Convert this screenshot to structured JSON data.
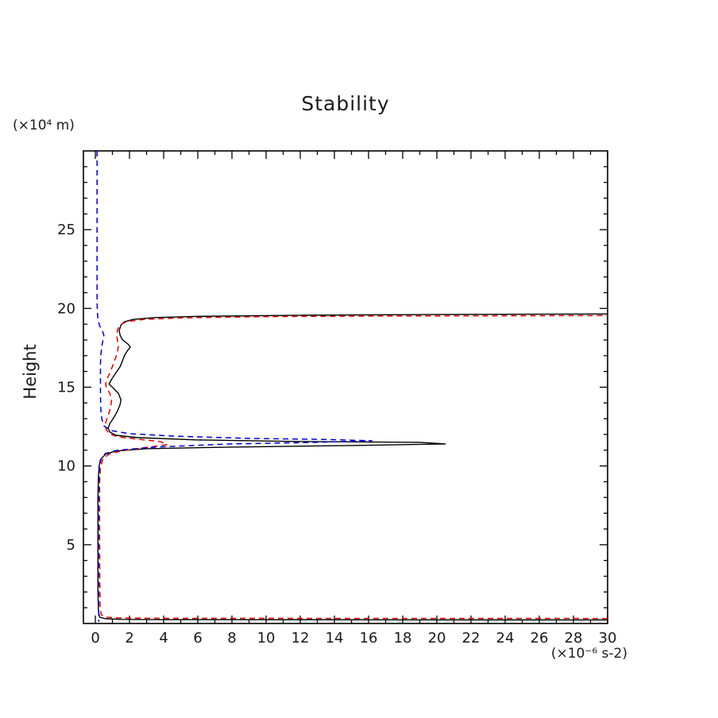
{
  "page": {
    "background": "#ffffff"
  },
  "chart": {
    "title": "Stability",
    "y_unit_label": "(×10⁴ m)",
    "x_unit_label": "(×10⁻⁶ s-2)",
    "y_axis_title": "Height"
  },
  "chart_data": {
    "type": "line",
    "title": "Stability",
    "xlabel": "(×10⁻⁶ s-2)",
    "ylabel": "Height (×10⁴ m)",
    "xlim": [
      -0.7,
      30
    ],
    "ylim": [
      0,
      30
    ],
    "x_major_ticks": [
      0,
      2,
      4,
      6,
      8,
      10,
      12,
      14,
      16,
      18,
      20,
      22,
      24,
      26,
      28,
      30
    ],
    "x_minor_step": 1,
    "y_major_ticks": [
      5,
      10,
      15,
      20,
      25
    ],
    "y_minor_step": 1,
    "grid": false,
    "legend": "none",
    "frame_color": "#000000",
    "tick_label_color": "#1a1a1a",
    "tick_label_size": 18,
    "series": [
      {
        "name": "black-solid",
        "color": "#000000",
        "dash": "",
        "width": 1.4,
        "points": [
          [
            30,
            0.22
          ],
          [
            4,
            0.24
          ],
          [
            1.5,
            0.26
          ],
          [
            0.6,
            0.3
          ],
          [
            0.25,
            0.4
          ],
          [
            0.18,
            0.8
          ],
          [
            0.15,
            2
          ],
          [
            0.15,
            5
          ],
          [
            0.15,
            8
          ],
          [
            0.18,
            9.3
          ],
          [
            0.22,
            10.0
          ],
          [
            0.3,
            10.4
          ],
          [
            0.6,
            10.75
          ],
          [
            1.2,
            10.95
          ],
          [
            3,
            11.1
          ],
          [
            8,
            11.2
          ],
          [
            15,
            11.3
          ],
          [
            20.5,
            11.4
          ],
          [
            19,
            11.5
          ],
          [
            12,
            11.55
          ],
          [
            6,
            11.65
          ],
          [
            2.5,
            11.8
          ],
          [
            1.2,
            11.95
          ],
          [
            0.85,
            12.15
          ],
          [
            0.75,
            12.4
          ],
          [
            0.85,
            12.7
          ],
          [
            1.1,
            13.1
          ],
          [
            1.3,
            13.5
          ],
          [
            1.45,
            13.9
          ],
          [
            1.5,
            14.2
          ],
          [
            1.35,
            14.6
          ],
          [
            1.05,
            14.95
          ],
          [
            0.8,
            15.2
          ],
          [
            0.95,
            15.5
          ],
          [
            1.2,
            15.9
          ],
          [
            1.45,
            16.3
          ],
          [
            1.6,
            16.7
          ],
          [
            1.7,
            17.0
          ],
          [
            1.9,
            17.35
          ],
          [
            2.05,
            17.55
          ],
          [
            1.9,
            17.75
          ],
          [
            1.6,
            18.0
          ],
          [
            1.45,
            18.3
          ],
          [
            1.4,
            18.6
          ],
          [
            1.5,
            18.95
          ],
          [
            1.7,
            19.15
          ],
          [
            2.2,
            19.3
          ],
          [
            3.5,
            19.42
          ],
          [
            6,
            19.5
          ],
          [
            12,
            19.57
          ],
          [
            20,
            19.62
          ],
          [
            30,
            19.65
          ]
        ]
      },
      {
        "name": "red-dashed",
        "color": "#dd0000",
        "dash": "7,5",
        "width": 1.5,
        "points": [
          [
            30,
            0.32
          ],
          [
            4,
            0.33
          ],
          [
            1.5,
            0.35
          ],
          [
            0.6,
            0.4
          ],
          [
            0.35,
            0.55
          ],
          [
            0.28,
            1
          ],
          [
            0.26,
            3
          ],
          [
            0.25,
            6
          ],
          [
            0.25,
            9
          ],
          [
            0.3,
            9.9
          ],
          [
            0.45,
            10.45
          ],
          [
            0.8,
            10.75
          ],
          [
            1.5,
            10.95
          ],
          [
            2.8,
            11.15
          ],
          [
            4.2,
            11.35
          ],
          [
            3.8,
            11.55
          ],
          [
            2.5,
            11.7
          ],
          [
            1.3,
            11.85
          ],
          [
            0.8,
            12.05
          ],
          [
            0.62,
            12.35
          ],
          [
            0.58,
            12.65
          ],
          [
            0.68,
            13.0
          ],
          [
            0.82,
            13.45
          ],
          [
            0.92,
            13.9
          ],
          [
            0.95,
            14.2
          ],
          [
            0.85,
            14.6
          ],
          [
            0.65,
            15.0
          ],
          [
            0.6,
            15.2
          ],
          [
            0.7,
            15.55
          ],
          [
            0.88,
            16.0
          ],
          [
            1.05,
            16.45
          ],
          [
            1.2,
            16.9
          ],
          [
            1.3,
            17.3
          ],
          [
            1.35,
            17.6
          ],
          [
            1.3,
            17.95
          ],
          [
            1.25,
            18.3
          ],
          [
            1.3,
            18.65
          ],
          [
            1.45,
            18.95
          ],
          [
            1.8,
            19.15
          ],
          [
            2.8,
            19.3
          ],
          [
            5,
            19.4
          ],
          [
            10,
            19.48
          ],
          [
            20,
            19.53
          ],
          [
            30,
            19.55
          ]
        ]
      },
      {
        "name": "blue-dashed",
        "color": "#0000cc",
        "dash": "7,5",
        "width": 1.5,
        "points": [
          [
            0.1,
            30
          ],
          [
            0.1,
            26
          ],
          [
            0.1,
            22
          ],
          [
            0.1,
            20.5
          ],
          [
            0.12,
            19.8
          ],
          [
            0.15,
            19.3
          ],
          [
            0.25,
            18.9
          ],
          [
            0.42,
            18.55
          ],
          [
            0.5,
            18.3
          ],
          [
            0.45,
            18.0
          ],
          [
            0.38,
            17.6
          ],
          [
            0.33,
            17.1
          ],
          [
            0.3,
            16.5
          ],
          [
            0.3,
            15.5
          ],
          [
            0.3,
            14.5
          ],
          [
            0.32,
            13.6
          ],
          [
            0.38,
            13.0
          ],
          [
            0.5,
            12.55
          ],
          [
            0.9,
            12.25
          ],
          [
            2,
            12.05
          ],
          [
            4.5,
            11.9
          ],
          [
            9,
            11.75
          ],
          [
            13.5,
            11.68
          ],
          [
            16.2,
            11.6
          ],
          [
            13,
            11.5
          ],
          [
            8,
            11.4
          ],
          [
            3.5,
            11.2
          ],
          [
            1.3,
            11.0
          ],
          [
            0.6,
            10.8
          ],
          [
            0.35,
            10.5
          ],
          [
            0.25,
            10.0
          ],
          [
            0.22,
            9
          ],
          [
            0.2,
            7
          ],
          [
            0.2,
            4
          ],
          [
            0.2,
            1.5
          ],
          [
            0.2,
            0.5
          ],
          [
            0.2,
            0.1
          ]
        ]
      }
    ]
  }
}
